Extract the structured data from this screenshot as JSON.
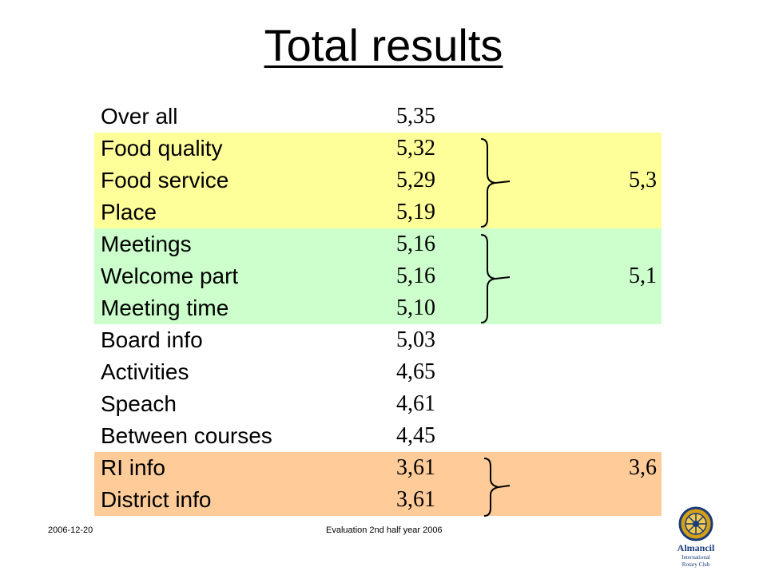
{
  "title": "Total results",
  "rows": [
    {
      "label": "Over all",
      "value": "5,35"
    },
    {
      "label": "Food quality",
      "value": "5,32"
    },
    {
      "label": "Food service",
      "value": "5,29"
    },
    {
      "label": "Place",
      "value": "5,19"
    },
    {
      "label": "Meetings",
      "value": "5,16"
    },
    {
      "label": "Welcome part",
      "value": "5,16"
    },
    {
      "label": "Meeting time",
      "value": "5,10"
    },
    {
      "label": "Board info",
      "value": "5,03"
    },
    {
      "label": "Activities",
      "value": "4,65"
    },
    {
      "label": "Speach",
      "value": "4,61"
    },
    {
      "label": "Between courses",
      "value": "4,45"
    },
    {
      "label": "RI info",
      "value": "3,61"
    },
    {
      "label": "District info",
      "value": "3,61"
    }
  ],
  "groups": [
    {
      "value": "5,3",
      "color": "#ffff99"
    },
    {
      "value": "5,1",
      "color": "#ccffcc"
    },
    {
      "value": "3,6",
      "color": "#ffcc99"
    }
  ],
  "footer": {
    "date": "2006-12-20",
    "center": "Evaluation 2nd half year 2006"
  },
  "logo": {
    "line1": "Almancil",
    "line2": "International",
    "line3": "Rotary Club"
  }
}
